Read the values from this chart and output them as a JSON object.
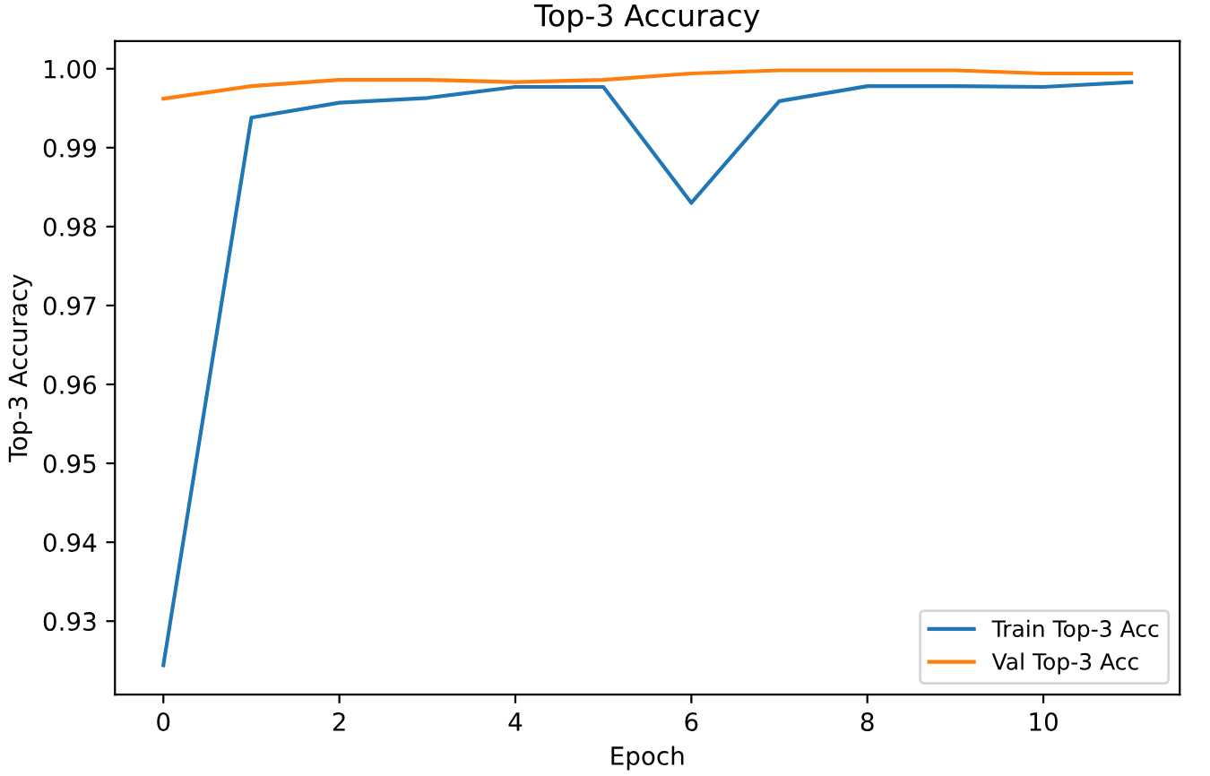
{
  "chart_data": {
    "type": "line",
    "title": "Top-3 Accuracy",
    "xlabel": "Epoch",
    "ylabel": "Top-3 Accuracy",
    "x": [
      0,
      1,
      2,
      3,
      4,
      5,
      6,
      7,
      8,
      9,
      10,
      11
    ],
    "series": [
      {
        "name": "Train Top-3 Acc",
        "color": "#1f77b4",
        "values": [
          0.9244,
          0.9938,
          0.9957,
          0.9963,
          0.9977,
          0.9977,
          0.983,
          0.9959,
          0.9978,
          0.9978,
          0.9977,
          0.9983
        ]
      },
      {
        "name": "Val Top-3 Acc",
        "color": "#ff7f0e",
        "values": [
          0.9962,
          0.9978,
          0.9986,
          0.9986,
          0.9983,
          0.9986,
          0.9994,
          0.9998,
          0.9998,
          0.9998,
          0.9994,
          0.9994
        ]
      }
    ],
    "xlim": [
      -0.55,
      11.55
    ],
    "xticks": [
      0,
      2,
      4,
      6,
      8,
      10
    ],
    "ylim": [
      0.9207,
      1.0035
    ],
    "yticks": [
      0.93,
      0.94,
      0.95,
      0.96,
      0.97,
      0.98,
      0.99,
      {
        "value": 1.0,
        "label": "1.00"
      }
    ],
    "legend": "lower right",
    "grid": false,
    "marker": "none",
    "line_style": "solid"
  }
}
